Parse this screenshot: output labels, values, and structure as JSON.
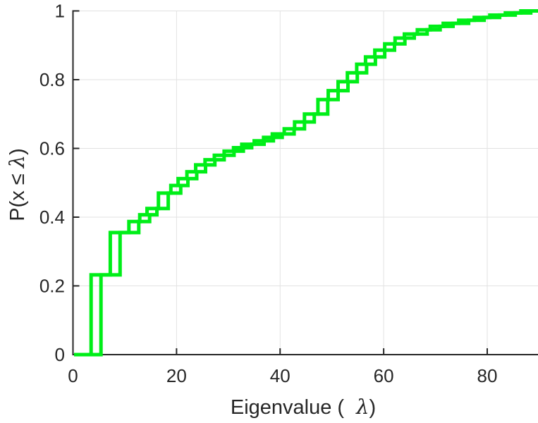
{
  "chart_data": {
    "type": "line",
    "subtype": "ecdf-stairs",
    "title": "",
    "xlabel": "Eigenvalue ( λ)",
    "ylabel": "P(x ≤ λ)",
    "xlabel_parts": {
      "prefix": "Eigenvalue (",
      "lambda": "λ",
      "suffix": ")"
    },
    "ylabel_parts": {
      "prefix": "P(x ≤ ",
      "lambda": "λ",
      "suffix": ")"
    },
    "xlim": [
      0,
      90
    ],
    "ylim": [
      0,
      1
    ],
    "x_ticks": [
      0,
      20,
      40,
      60,
      80
    ],
    "x_tick_labels": [
      "0",
      "20",
      "40",
      "60",
      "80"
    ],
    "y_ticks": [
      0,
      0.2,
      0.4,
      0.6,
      0.8,
      1
    ],
    "y_tick_labels": [
      "0",
      "0.2",
      "0.4",
      "0.6",
      "0.8",
      "1"
    ],
    "grid": true,
    "legend": null,
    "line_color": "#00ee18",
    "axis_color": "#262626",
    "grid_color": "#e2e2e2",
    "line_width": 5,
    "series": [
      {
        "name": "ecdf-curve-1",
        "start_x": 0.2,
        "end_x": 90,
        "steps": [
          [
            3.5,
            0.232
          ],
          [
            7.2,
            0.355
          ],
          [
            10.8,
            0.387
          ],
          [
            12.9,
            0.407
          ],
          [
            14.3,
            0.425
          ],
          [
            16.5,
            0.47
          ],
          [
            18.9,
            0.492
          ],
          [
            20.3,
            0.512
          ],
          [
            22.0,
            0.532
          ],
          [
            23.7,
            0.552
          ],
          [
            25.5,
            0.567
          ],
          [
            27.3,
            0.58
          ],
          [
            29.2,
            0.592
          ],
          [
            31.0,
            0.602
          ],
          [
            32.6,
            0.612
          ],
          [
            35.0,
            0.622
          ],
          [
            36.8,
            0.632
          ],
          [
            38.5,
            0.642
          ],
          [
            40.8,
            0.657
          ],
          [
            42.8,
            0.677
          ],
          [
            44.7,
            0.7
          ],
          [
            47.3,
            0.742
          ],
          [
            49.3,
            0.768
          ],
          [
            51.2,
            0.794
          ],
          [
            53.0,
            0.82
          ],
          [
            54.8,
            0.845
          ],
          [
            56.5,
            0.866
          ],
          [
            58.3,
            0.886
          ],
          [
            60.2,
            0.904
          ],
          [
            62.2,
            0.921
          ],
          [
            64.0,
            0.933
          ],
          [
            66.5,
            0.945
          ],
          [
            69.0,
            0.955
          ],
          [
            71.5,
            0.964
          ],
          [
            74.5,
            0.973
          ],
          [
            77.5,
            0.981
          ],
          [
            80.5,
            0.988
          ],
          [
            83.5,
            0.994
          ],
          [
            86.5,
            1.0
          ]
        ]
      },
      {
        "name": "ecdf-curve-2",
        "start_x": 0.2,
        "end_x": 90,
        "steps": [
          [
            5.4,
            0.232
          ],
          [
            9.1,
            0.355
          ],
          [
            12.7,
            0.387
          ],
          [
            14.8,
            0.407
          ],
          [
            16.2,
            0.425
          ],
          [
            18.4,
            0.47
          ],
          [
            20.8,
            0.492
          ],
          [
            22.2,
            0.512
          ],
          [
            23.9,
            0.532
          ],
          [
            25.6,
            0.552
          ],
          [
            27.4,
            0.567
          ],
          [
            29.2,
            0.58
          ],
          [
            31.1,
            0.592
          ],
          [
            32.9,
            0.602
          ],
          [
            34.5,
            0.612
          ],
          [
            36.9,
            0.622
          ],
          [
            38.7,
            0.632
          ],
          [
            40.4,
            0.642
          ],
          [
            42.7,
            0.657
          ],
          [
            44.7,
            0.677
          ],
          [
            46.6,
            0.7
          ],
          [
            49.2,
            0.742
          ],
          [
            51.2,
            0.768
          ],
          [
            53.1,
            0.794
          ],
          [
            54.9,
            0.82
          ],
          [
            56.7,
            0.845
          ],
          [
            58.4,
            0.866
          ],
          [
            60.2,
            0.886
          ],
          [
            62.1,
            0.904
          ],
          [
            64.1,
            0.921
          ],
          [
            65.9,
            0.933
          ],
          [
            68.4,
            0.945
          ],
          [
            70.9,
            0.955
          ],
          [
            73.4,
            0.964
          ],
          [
            76.4,
            0.973
          ],
          [
            79.4,
            0.981
          ],
          [
            82.4,
            0.988
          ],
          [
            85.4,
            0.994
          ],
          [
            88.4,
            1.0
          ]
        ]
      }
    ]
  }
}
